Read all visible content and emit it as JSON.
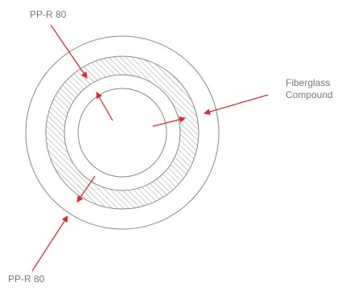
{
  "labels": {
    "outer_top": "PP-R 80",
    "outer_bottom": "PP-R 80",
    "middle_line1": "Fiberglass",
    "middle_line2": "Compound"
  },
  "colors": {
    "circle_stroke": "#888888",
    "hatch": "#999999",
    "arrow": "#e0262c",
    "label_text": "#777777"
  }
}
